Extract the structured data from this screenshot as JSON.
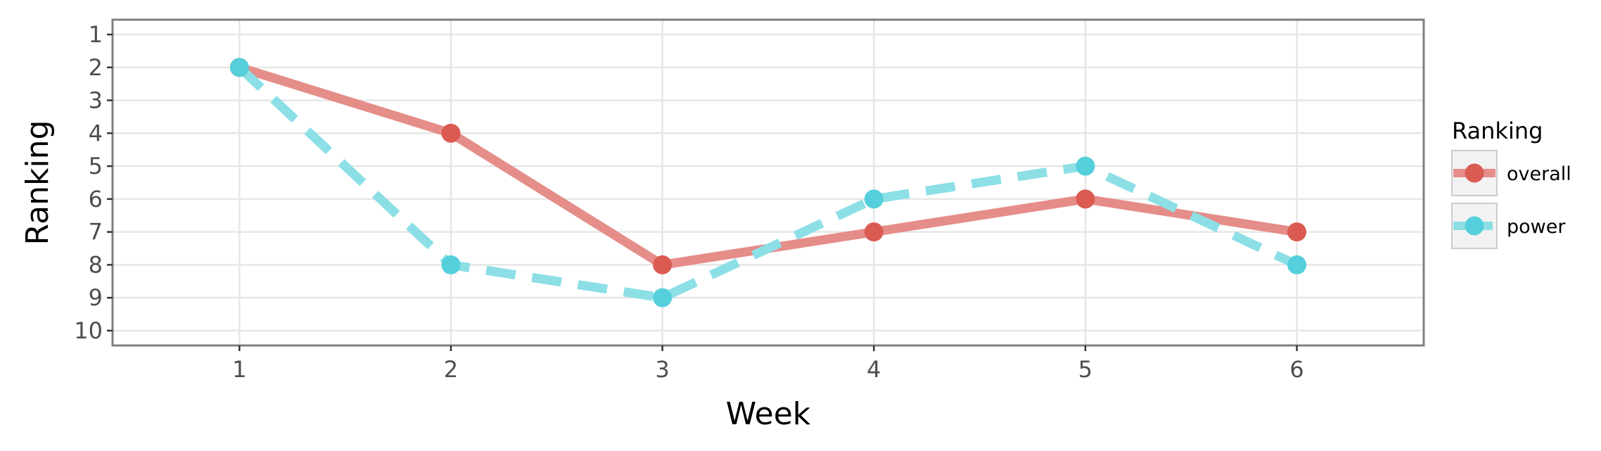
{
  "chart_data": {
    "type": "line",
    "title": "",
    "xlabel": "Week",
    "ylabel": "Ranking",
    "x": [
      1,
      2,
      3,
      4,
      5,
      6
    ],
    "xticks": [
      "1",
      "2",
      "3",
      "4",
      "5",
      "6"
    ],
    "xlim": [
      0.4,
      6.6
    ],
    "yticks": [
      "1",
      "2",
      "3",
      "4",
      "5",
      "6",
      "7",
      "8",
      "9",
      "10"
    ],
    "ylim": [
      0.55,
      10.45
    ],
    "y_reversed": true,
    "grid": true,
    "legend": {
      "title": "Ranking",
      "placement": "right"
    },
    "series": [
      {
        "name": "overall",
        "values": [
          2,
          4,
          8,
          7,
          6,
          7
        ],
        "color": "#e58d89",
        "point_color": "#db5b53",
        "line_style": "solid"
      },
      {
        "name": "power",
        "values": [
          2,
          8,
          9,
          6,
          5,
          8
        ],
        "color": "#8ddfe6",
        "point_color": "#55cfdb",
        "line_style": "dashed"
      }
    ]
  }
}
